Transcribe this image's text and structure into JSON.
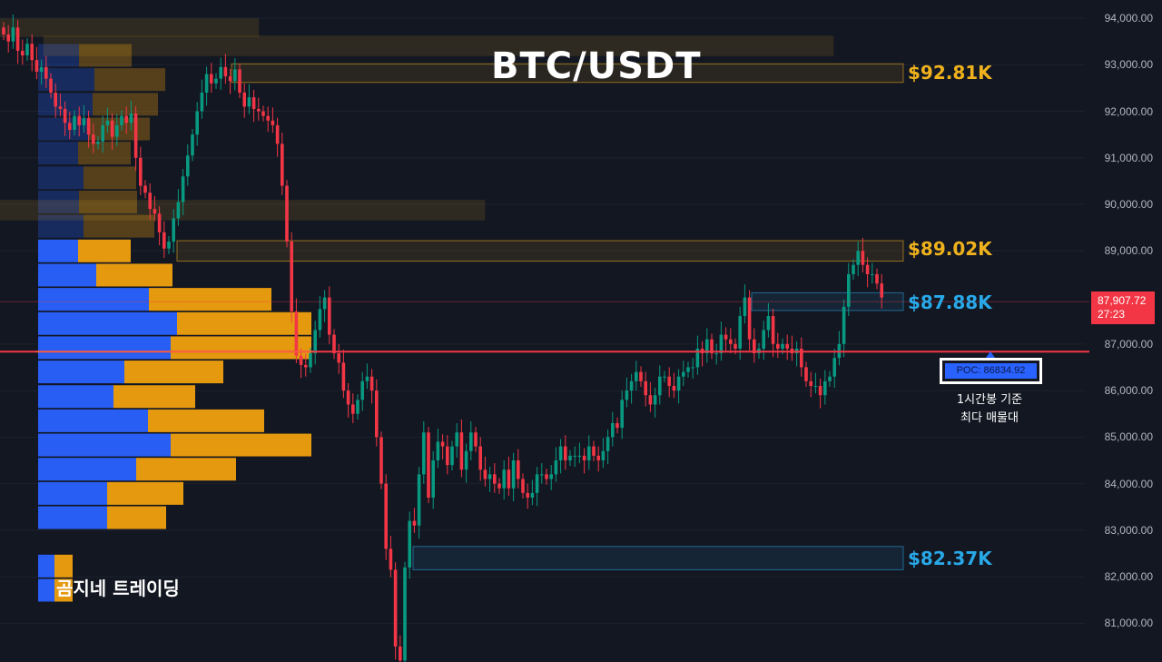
{
  "chart_data": {
    "type": "candlestick",
    "title": "BTC/USDT",
    "y_axis": {
      "ticks": [
        "94,000.00",
        "93,000.00",
        "92,000.00",
        "91,000.00",
        "90,000.00",
        "89,000.00",
        "87,907.72",
        "87,000.00",
        "86,000.00",
        "85,000.00",
        "84,000.00",
        "83,000.00",
        "82,000.00",
        "81,000.00"
      ],
      "range": [
        80200,
        94300
      ]
    },
    "current_price": {
      "value": "87,907.72",
      "countdown": "27:23"
    },
    "poc": {
      "label": "POC: 86834.92",
      "value": 86834.92
    },
    "levels": [
      {
        "label": "$92.81K",
        "value": 92810,
        "color": "#f0b21c",
        "zone": [
          92620,
          93020
        ]
      },
      {
        "label": "$89.02K",
        "value": 89020,
        "color": "#f0b21c",
        "zone": [
          88780,
          89220
        ]
      },
      {
        "label": "$87.88K",
        "value": 87880,
        "color": "#29a8e8",
        "zone": [
          87720,
          88100
        ]
      },
      {
        "label": "$82.37K",
        "value": 82370,
        "color": "#29a8e8",
        "zone": [
          82150,
          82650
        ]
      }
    ],
    "volume_profile": {
      "bins": [
        {
          "price": 93200,
          "buy": 45,
          "sell": 58
        },
        {
          "price": 92680,
          "buy": 62,
          "sell": 78
        },
        {
          "price": 92150,
          "buy": 60,
          "sell": 72
        },
        {
          "price": 91620,
          "buy": 55,
          "sell": 68
        },
        {
          "price": 91100,
          "buy": 44,
          "sell": 58
        },
        {
          "price": 90570,
          "buy": 50,
          "sell": 58
        },
        {
          "price": 90050,
          "buy": 45,
          "sell": 64
        },
        {
          "price": 89530,
          "buy": 50,
          "sell": 78
        },
        {
          "price": 89000,
          "buy": 44,
          "sell": 58
        },
        {
          "price": 88480,
          "buy": 64,
          "sell": 84
        },
        {
          "price": 87960,
          "buy": 122,
          "sell": 135
        },
        {
          "price": 87440,
          "buy": 153,
          "sell": 148
        },
        {
          "price": 86920,
          "buy": 146,
          "sell": 155
        },
        {
          "price": 86400,
          "buy": 95,
          "sell": 109
        },
        {
          "price": 85870,
          "buy": 83,
          "sell": 90
        },
        {
          "price": 85350,
          "buy": 121,
          "sell": 128
        },
        {
          "price": 84830,
          "buy": 146,
          "sell": 155
        },
        {
          "price": 84310,
          "buy": 108,
          "sell": 110
        },
        {
          "price": 83790,
          "buy": 76,
          "sell": 84
        },
        {
          "price": 83270,
          "buy": 76,
          "sell": 65
        },
        {
          "price": 82750,
          "buy": 0,
          "sell": 0
        },
        {
          "price": 82230,
          "buy": 18,
          "sell": 20
        },
        {
          "price": 81710,
          "buy": 18,
          "sell": 20
        }
      ]
    },
    "candles_close": [
      93650,
      93500,
      93800,
      93300,
      93200,
      93450,
      93100,
      92850,
      92950,
      92700,
      92400,
      92100,
      92050,
      91750,
      91600,
      91900,
      91700,
      91850,
      91500,
      91300,
      91350,
      91700,
      91800,
      91450,
      91700,
      91900,
      91750,
      91950,
      91000,
      90400,
      90250,
      89900,
      89800,
      89400,
      89050,
      89200,
      89700,
      90050,
      90600,
      91050,
      91500,
      92000,
      92400,
      92800,
      92600,
      92700,
      92950,
      92750,
      92650,
      92900,
      92400,
      92100,
      92300,
      92050,
      92000,
      91900,
      91800,
      91700,
      91300,
      90400,
      89200,
      87700,
      86750,
      86550,
      86500,
      86800,
      87300,
      87750,
      88000,
      87200,
      86800,
      86600,
      86000,
      85700,
      85500,
      85800,
      86200,
      86300,
      86000,
      85000,
      84000,
      82600,
      82150,
      80500,
      80200,
      82200,
      83200,
      83100,
      84200,
      85100,
      83700,
      84500,
      84900,
      84800,
      84400,
      84800,
      85100,
      84300,
      84700,
      85100,
      84800,
      84300,
      84100,
      84200,
      84000,
      83900,
      84300,
      83900,
      84500,
      84100,
      83800,
      83700,
      83800,
      84200,
      84200,
      84100,
      84200,
      84500,
      84800,
      84500,
      84600,
      84600,
      84600,
      84500,
      84800,
      84600,
      84500,
      84700,
      85000,
      85300,
      85200,
      85800,
      86000,
      86200,
      86400,
      86200,
      85900,
      85700,
      85900,
      86300,
      86300,
      86100,
      86000,
      86300,
      86400,
      86500,
      86500,
      86900,
      86800,
      87100,
      86800,
      86800,
      87200,
      87100,
      87000,
      86900,
      87600,
      88000,
      87100,
      86800,
      86900,
      87300,
      87600,
      87000,
      86900,
      87000,
      86900,
      86800,
      86900,
      86500,
      86200,
      86100,
      86100,
      85900,
      86200,
      86300,
      86700,
      87000,
      87800,
      88500,
      88700,
      89000,
      88700,
      88500,
      88500,
      88300,
      88000
    ],
    "colors": {
      "up": "#089981",
      "down": "#f23645",
      "buy": "#2962ff",
      "sell": "#f0a00e"
    }
  },
  "overlay": {
    "note_line1": "1시간봉 기준",
    "note_line2": "최다 매물대",
    "brand": "곰지네 트레이딩"
  }
}
